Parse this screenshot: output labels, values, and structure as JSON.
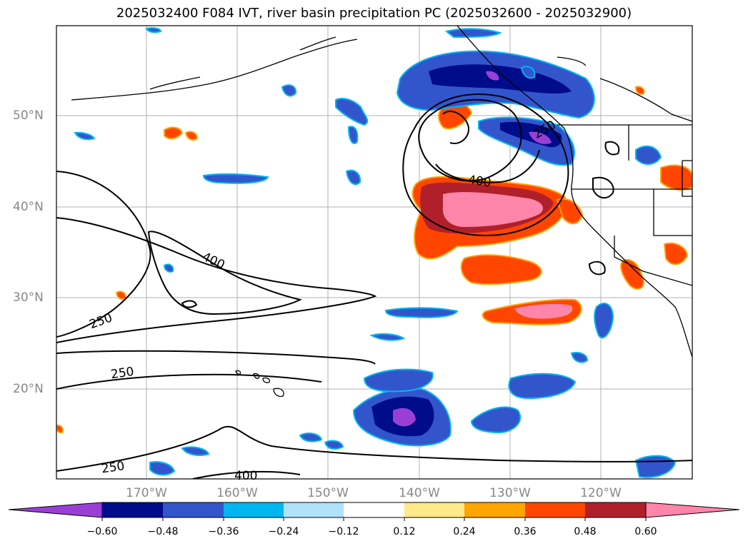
{
  "title": "2025032400 F084 IVT, river basin precipitation PC (2025032600 - 2025032900)",
  "latitude_labels": [
    "50°N",
    "40°N",
    "30°N",
    "20°N"
  ],
  "longitude_labels": [
    "170°W",
    "160°W",
    "150°W",
    "140°W",
    "130°W",
    "120°W"
  ],
  "contour_labels": [
    "400",
    "250",
    "400",
    "250",
    "250",
    "400",
    "250"
  ],
  "colorbar": {
    "ticks": [
      "−0.60",
      "−0.48",
      "−0.36",
      "−0.24",
      "−0.12",
      "0.12",
      "0.24",
      "0.36",
      "0.48",
      "0.60"
    ],
    "colors": [
      "#9a3fd6",
      "#000c8a",
      "#3355cc",
      "#00b6f0",
      "#b0e2fa",
      "#ffffff",
      "#ffe98a",
      "#ffa500",
      "#ff4500",
      "#b0202a",
      "#ff85aa"
    ]
  }
}
